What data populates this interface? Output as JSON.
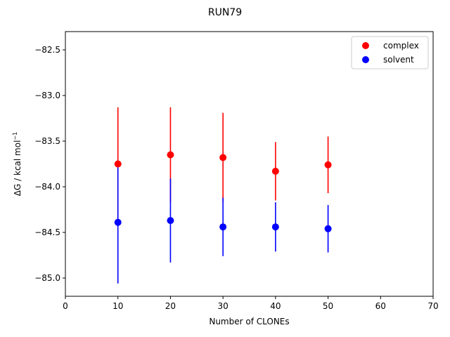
{
  "chart_data": {
    "type": "scatter",
    "title": "RUN79",
    "xlabel": "Number of CLONEs",
    "ylabel_parts": {
      "main": "ΔG / kcal mol",
      "sup": "−1"
    },
    "xlim": [
      0,
      70
    ],
    "ylim": [
      -85.2,
      -82.3
    ],
    "xticks": [
      0,
      10,
      20,
      30,
      40,
      50,
      60,
      70
    ],
    "yticks": [
      -85.0,
      -84.5,
      -84.0,
      -83.5,
      -83.0,
      -82.5
    ],
    "ytick_labels": [
      "−85.0",
      "−84.5",
      "−84.0",
      "−83.5",
      "−83.0",
      "−82.5"
    ],
    "grid": false,
    "legend_position": "top-right",
    "series": [
      {
        "name": "complex",
        "color": "#ff0000",
        "x": [
          10,
          20,
          30,
          40,
          50
        ],
        "y": [
          -83.75,
          -83.65,
          -83.68,
          -83.83,
          -83.76
        ],
        "err": [
          0.62,
          0.52,
          0.49,
          0.32,
          0.31
        ]
      },
      {
        "name": "solvent",
        "color": "#0000ff",
        "x": [
          10,
          20,
          30,
          40,
          50
        ],
        "y": [
          -84.39,
          -84.37,
          -84.44,
          -84.44,
          -84.46
        ],
        "err": [
          0.67,
          0.46,
          0.32,
          0.27,
          0.26
        ]
      }
    ]
  }
}
